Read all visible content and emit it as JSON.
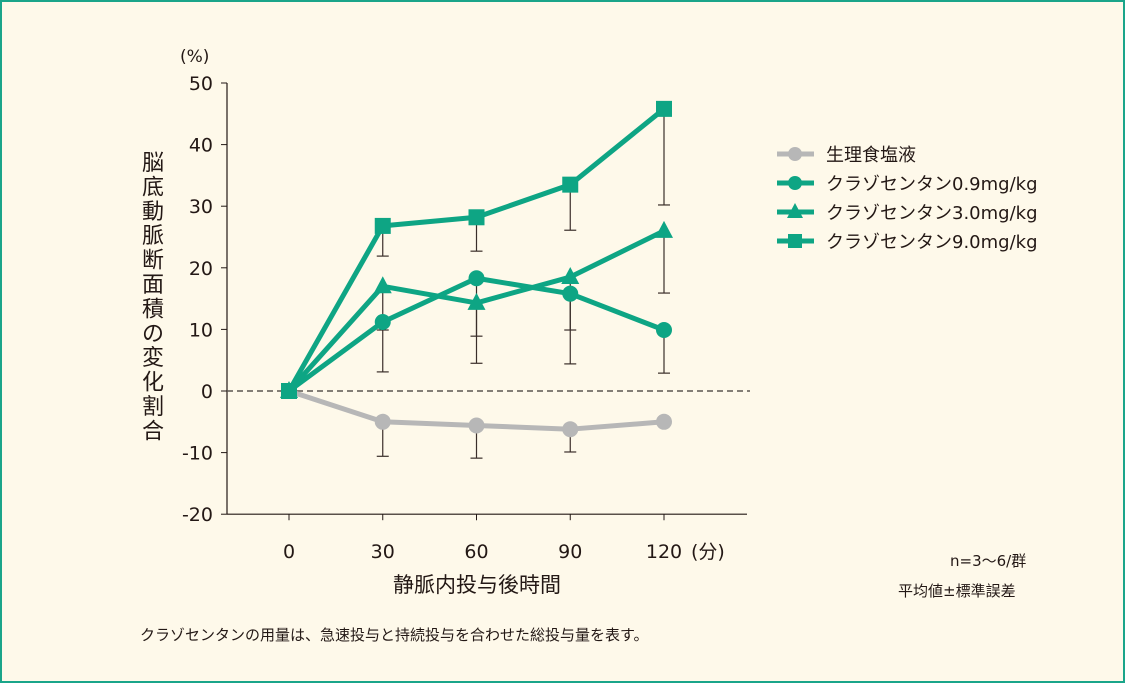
{
  "chart_data": {
    "type": "line",
    "ylabel": "脳底動脈断面積の変化割合",
    "yunit": "(%)",
    "xlabel": "静脈内投与後時間",
    "xunit": "(分)",
    "x": [
      0,
      30,
      60,
      90,
      120
    ],
    "ylim": [
      -20,
      50
    ],
    "yticks": [
      50,
      40,
      30,
      20,
      10,
      0,
      -10,
      -20
    ],
    "xticks": [
      0,
      30,
      60,
      90,
      120
    ],
    "reference_line": 0,
    "grid": false,
    "legend_position": "right",
    "series": [
      {
        "name": "生理食塩液",
        "marker": "circle",
        "color": "#b7b7b7",
        "values": [
          0,
          -5.0,
          -5.6,
          -6.2,
          -5.0
        ],
        "error_lower": [
          0,
          5.6,
          5.3,
          3.7,
          0
        ]
      },
      {
        "name": "クラゾセンタン0.9mg/kg",
        "marker": "circle",
        "color": "#0ea584",
        "values": [
          0,
          11.2,
          18.3,
          15.8,
          9.9
        ],
        "error_lower": [
          0,
          8.1,
          13.8,
          11.4,
          7.0
        ]
      },
      {
        "name": "クラゾセンタン3.0mg/kg",
        "marker": "triangle",
        "color": "#0ea584",
        "values": [
          0,
          17.0,
          14.3,
          18.5,
          26.0
        ],
        "error_lower": [
          0,
          7.1,
          5.4,
          8.6,
          10.1
        ]
      },
      {
        "name": "クラゾセンタン9.0mg/kg",
        "marker": "square",
        "color": "#0ea584",
        "values": [
          0,
          26.8,
          28.2,
          33.5,
          45.8
        ],
        "error_lower": [
          0,
          4.9,
          5.5,
          7.4,
          15.6
        ]
      }
    ]
  },
  "notes": {
    "n": "n=3〜6/群",
    "stat": "平均値±標準誤差",
    "footnote": "クラゾセンタンの用量は、急速投与と持続投与を合わせた総投与量を表す。"
  }
}
